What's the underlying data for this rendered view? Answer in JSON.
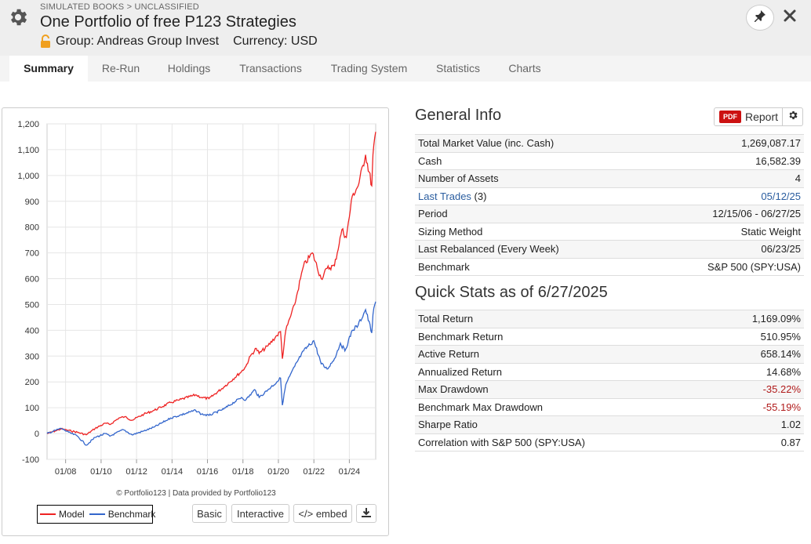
{
  "header": {
    "breadcrumb": "SIMULATED BOOKS > UNCLASSIFIED",
    "title": "One Portfolio of free P123 Strategies",
    "group": "Group: Andreas Group Invest",
    "currency": "Currency: USD",
    "icons": {
      "settings": "gear-icon",
      "lock": "lock-open-icon",
      "pin": "pin-icon",
      "close": "close-icon"
    }
  },
  "tabs": [
    "Summary",
    "Re-Run",
    "Holdings",
    "Transactions",
    "Trading System",
    "Statistics",
    "Charts"
  ],
  "active_tab": "Summary",
  "chart": {
    "credit": "© Portfolio123 | Data provided by Portfolio123",
    "legend": [
      "Model",
      "Benchmark"
    ],
    "buttons": {
      "basic": "Basic",
      "interactive": "Interactive",
      "embed": "</> embed"
    },
    "colors": {
      "model": "#ee2222",
      "benchmark": "#3366cc"
    }
  },
  "chart_data": {
    "type": "line",
    "title": "",
    "xlabel": "",
    "ylabel": "",
    "ylim": [
      -100,
      1200
    ],
    "y_ticks": [
      "1,200",
      "1,100",
      "1,000",
      "900",
      "800",
      "700",
      "600",
      "500",
      "400",
      "300",
      "200",
      "100",
      "0",
      "-100"
    ],
    "x_ticks": [
      "01/08",
      "01/10",
      "01/12",
      "01/14",
      "01/16",
      "01/18",
      "01/20",
      "01/22",
      "01/24"
    ],
    "x_range": [
      "2006-12-15",
      "2025-06-27"
    ],
    "grid": true,
    "legend_position": "bottom-left",
    "series": [
      {
        "name": "Model",
        "points": [
          [
            "2006-12-15",
            0
          ],
          [
            "2007-06-01",
            10
          ],
          [
            "2007-10-01",
            18
          ],
          [
            "2008-03-01",
            12
          ],
          [
            "2008-09-01",
            5
          ],
          [
            "2009-03-01",
            -5
          ],
          [
            "2009-09-01",
            20
          ],
          [
            "2010-04-01",
            40
          ],
          [
            "2010-07-01",
            35
          ],
          [
            "2011-01-01",
            60
          ],
          [
            "2011-05-01",
            65
          ],
          [
            "2011-10-01",
            52
          ],
          [
            "2012-06-01",
            75
          ],
          [
            "2013-01-01",
            90
          ],
          [
            "2013-12-01",
            120
          ],
          [
            "2014-06-01",
            130
          ],
          [
            "2015-05-01",
            150
          ],
          [
            "2015-09-01",
            140
          ],
          [
            "2016-02-01",
            135
          ],
          [
            "2016-12-01",
            180
          ],
          [
            "2017-12-01",
            240
          ],
          [
            "2018-03-01",
            260
          ],
          [
            "2018-06-01",
            300
          ],
          [
            "2018-10-01",
            330
          ],
          [
            "2018-12-01",
            310
          ],
          [
            "2019-06-01",
            340
          ],
          [
            "2019-12-01",
            380
          ],
          [
            "2020-02-15",
            395
          ],
          [
            "2020-03-23",
            290
          ],
          [
            "2020-06-01",
            400
          ],
          [
            "2020-12-01",
            500
          ],
          [
            "2021-06-01",
            650
          ],
          [
            "2021-12-01",
            700
          ],
          [
            "2022-06-01",
            600
          ],
          [
            "2022-10-01",
            640
          ],
          [
            "2023-03-01",
            650
          ],
          [
            "2023-08-01",
            790
          ],
          [
            "2023-11-01",
            760
          ],
          [
            "2024-03-01",
            920
          ],
          [
            "2024-07-01",
            960
          ],
          [
            "2024-12-01",
            1080
          ],
          [
            "2025-04-08",
            960
          ],
          [
            "2025-05-01",
            1080
          ],
          [
            "2025-06-27",
            1169
          ]
        ]
      },
      {
        "name": "Benchmark",
        "points": [
          [
            "2006-12-15",
            0
          ],
          [
            "2007-06-01",
            12
          ],
          [
            "2007-10-01",
            20
          ],
          [
            "2008-03-01",
            5
          ],
          [
            "2008-09-01",
            -10
          ],
          [
            "2009-03-01",
            -45
          ],
          [
            "2009-09-01",
            -15
          ],
          [
            "2010-04-01",
            0
          ],
          [
            "2010-07-01",
            -10
          ],
          [
            "2011-04-01",
            15
          ],
          [
            "2011-10-01",
            -5
          ],
          [
            "2012-06-01",
            10
          ],
          [
            "2013-01-01",
            25
          ],
          [
            "2013-12-01",
            60
          ],
          [
            "2014-06-01",
            70
          ],
          [
            "2015-05-01",
            90
          ],
          [
            "2015-09-01",
            75
          ],
          [
            "2016-02-01",
            70
          ],
          [
            "2016-12-01",
            95
          ],
          [
            "2017-12-01",
            140
          ],
          [
            "2018-03-01",
            130
          ],
          [
            "2018-09-01",
            170
          ],
          [
            "2018-12-01",
            140
          ],
          [
            "2019-06-01",
            170
          ],
          [
            "2019-12-01",
            200
          ],
          [
            "2020-02-15",
            215
          ],
          [
            "2020-03-23",
            110
          ],
          [
            "2020-06-01",
            190
          ],
          [
            "2020-12-01",
            260
          ],
          [
            "2021-06-01",
            320
          ],
          [
            "2021-12-31",
            360
          ],
          [
            "2022-06-01",
            270
          ],
          [
            "2022-10-01",
            250
          ],
          [
            "2023-03-01",
            290
          ],
          [
            "2023-07-01",
            350
          ],
          [
            "2023-10-01",
            320
          ],
          [
            "2024-03-01",
            400
          ],
          [
            "2024-07-01",
            420
          ],
          [
            "2024-12-01",
            480
          ],
          [
            "2025-04-08",
            390
          ],
          [
            "2025-05-01",
            460
          ],
          [
            "2025-06-27",
            511
          ]
        ]
      }
    ]
  },
  "general_info": {
    "title": "General Info",
    "report_button": {
      "badge": "PDF",
      "label": "Report"
    },
    "rows": [
      {
        "label": "Total Market Value (inc. Cash)",
        "value": "1,269,087.17"
      },
      {
        "label": "Cash",
        "value": "16,582.39"
      },
      {
        "label": "Number of Assets",
        "value": "4"
      },
      {
        "label": "Last Trades",
        "extra": " (3)",
        "value": "05/12/25"
      },
      {
        "label": "Period",
        "value": "12/15/06 - 06/27/25"
      },
      {
        "label": "Sizing Method",
        "value": "Static Weight"
      },
      {
        "label": "Last Rebalanced (Every Week)",
        "value": "06/23/25"
      },
      {
        "label": "Benchmark",
        "value": "S&P 500 (SPY:USA)"
      }
    ]
  },
  "quick_stats": {
    "title": "Quick Stats as of 6/27/2025",
    "rows": [
      {
        "label": "Total Return",
        "value": "1,169.09%"
      },
      {
        "label": "Benchmark Return",
        "value": "510.95%"
      },
      {
        "label": "Active Return",
        "value": "658.14%"
      },
      {
        "label": "Annualized Return",
        "value": "14.68%"
      },
      {
        "label": "Max Drawdown",
        "value": "-35.22%"
      },
      {
        "label": "Benchmark Max Drawdown",
        "value": "-55.19%"
      },
      {
        "label": "Sharpe Ratio",
        "value": "1.02"
      },
      {
        "label": "Correlation with S&P 500 (SPY:USA)",
        "value": "0.87"
      }
    ]
  }
}
